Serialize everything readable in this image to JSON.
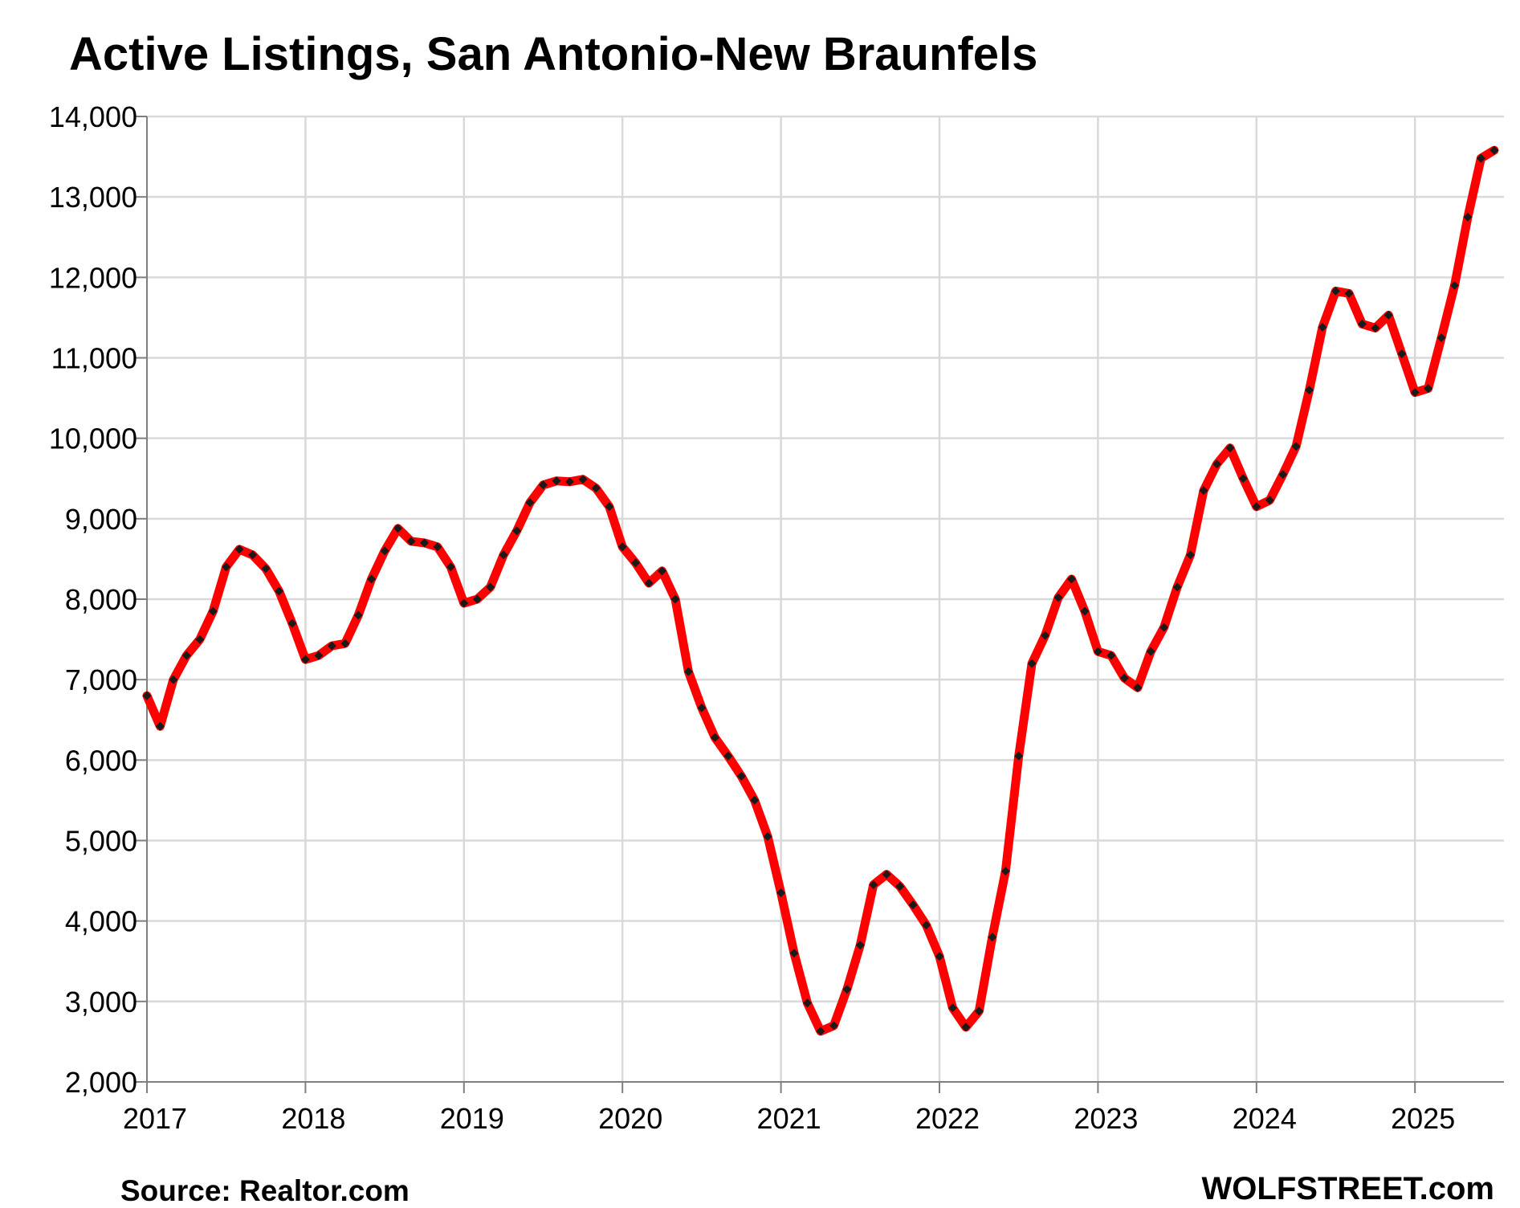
{
  "footer": {
    "source": "Source: Realtor.com",
    "brand": "WOLFSTREET.com"
  },
  "colors": {
    "line": "#ff0000",
    "markers": "#1a1a1a",
    "grid": "#d9d9d9",
    "axis": "#7f7f7f"
  },
  "chart_data": {
    "type": "line",
    "title": "Active Listings, San Antonio-New Braunfels",
    "xlabel": "",
    "ylabel": "",
    "ylim": [
      2000,
      14000
    ],
    "xlim": [
      "2017-01",
      "2025-08"
    ],
    "grid": true,
    "yticks": [
      2000,
      3000,
      4000,
      5000,
      6000,
      7000,
      8000,
      9000,
      10000,
      11000,
      12000,
      13000,
      14000
    ],
    "ytick_labels": [
      "2,000",
      "3,000",
      "4,000",
      "5,000",
      "6,000",
      "7,000",
      "8,000",
      "9,000",
      "10,000",
      "11,000",
      "12,000",
      "13,000",
      "14,000"
    ],
    "xticks": [
      "2017",
      "2018",
      "2019",
      "2020",
      "2021",
      "2022",
      "2023",
      "2024",
      "2025"
    ],
    "series": [
      {
        "start": "2017-01",
        "frequency": "monthly",
        "values": [
          6800,
          6420,
          7000,
          7300,
          7500,
          7850,
          8400,
          8620,
          8550,
          8380,
          8100,
          7700,
          7250,
          7300,
          7420,
          7450,
          7800,
          8250,
          8600,
          8880,
          8720,
          8700,
          8650,
          8400,
          7950,
          8000,
          8150,
          8550,
          8850,
          9200,
          9420,
          9470,
          9460,
          9490,
          9380,
          9150,
          8650,
          8450,
          8200,
          8350,
          8000,
          7100,
          6650,
          6280,
          6050,
          5800,
          5500,
          5050,
          4350,
          3600,
          2980,
          2630,
          2700,
          3150,
          3700,
          4450,
          4580,
          4430,
          4200,
          3950,
          3560,
          2920,
          2680,
          2880,
          3800,
          4620,
          6050,
          7200,
          7550,
          8020,
          8250,
          7850,
          7350,
          7300,
          7020,
          6900,
          7350,
          7650,
          8150,
          8550,
          9350,
          9680,
          9880,
          9500,
          9150,
          9230,
          9550,
          9900,
          10600,
          11380,
          11830,
          11800,
          11420,
          11370,
          11530,
          11050,
          10570,
          10620,
          11250,
          11900,
          12750,
          13480,
          13580
        ]
      }
    ]
  }
}
